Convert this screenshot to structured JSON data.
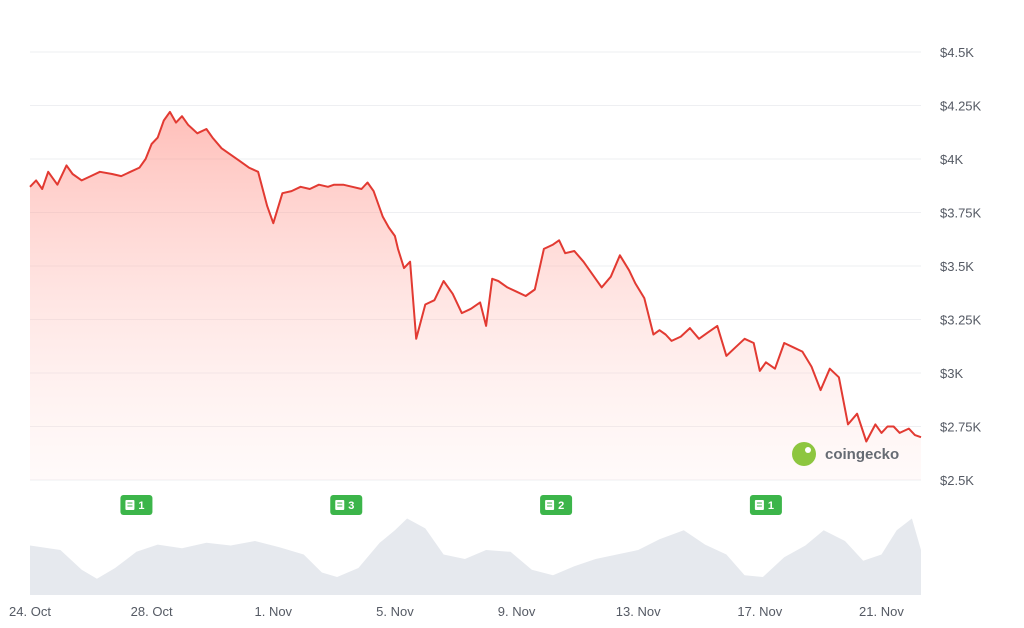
{
  "chart_data": {
    "type": "area",
    "y_tick_labels": [
      "$4.5K",
      "$4.25K",
      "$4K",
      "$3.75K",
      "$3.5K",
      "$3.25K",
      "$3K",
      "$2.75K",
      "$2.5K"
    ],
    "y_ticks": [
      4500,
      4250,
      4000,
      3750,
      3500,
      3250,
      3000,
      2750,
      2500
    ],
    "ylim": [
      2500,
      4500
    ],
    "x_tick_labels": [
      "24. Oct",
      "28. Oct",
      "1. Nov",
      "5. Nov",
      "9. Nov",
      "13. Nov",
      "17. Nov",
      "21. Nov"
    ],
    "x_ticks": [
      0,
      4,
      8,
      12,
      16,
      20,
      24,
      28
    ],
    "x_unit": "days since 24. Oct",
    "xlim": [
      0,
      29.3
    ],
    "grid": true,
    "legend": "none",
    "line_color": "#e23a32",
    "fill_color": "#ff8a80",
    "price_series": {
      "x": [
        0,
        0.2,
        0.4,
        0.6,
        0.9,
        1.2,
        1.4,
        1.7,
        2.0,
        2.3,
        2.7,
        3.0,
        3.3,
        3.6,
        3.8,
        4.0,
        4.2,
        4.4,
        4.6,
        4.8,
        5.0,
        5.2,
        5.5,
        5.8,
        6.0,
        6.3,
        6.6,
        6.9,
        7.2,
        7.5,
        7.8,
        8.0,
        8.3,
        8.6,
        8.9,
        9.2,
        9.5,
        9.8,
        10.0,
        10.3,
        10.6,
        10.9,
        11.1,
        11.3,
        11.6,
        11.8,
        12.0,
        12.1,
        12.3,
        12.5,
        12.7,
        13.0,
        13.3,
        13.6,
        13.9,
        14.2,
        14.5,
        14.8,
        15.0,
        15.2,
        15.4,
        15.7,
        16.0,
        16.3,
        16.6,
        16.9,
        17.2,
        17.4,
        17.6,
        17.9,
        18.2,
        18.5,
        18.8,
        19.1,
        19.4,
        19.7,
        19.9,
        20.2,
        20.5,
        20.7,
        20.9,
        21.1,
        21.4,
        21.7,
        22.0,
        22.3,
        22.6,
        22.9,
        23.2,
        23.5,
        23.8,
        24.0,
        24.2,
        24.5,
        24.8,
        25.1,
        25.4,
        25.7,
        26.0,
        26.3,
        26.6,
        26.9,
        27.2,
        27.5,
        27.8,
        28.0,
        28.2,
        28.4,
        28.6,
        28.9,
        29.1,
        29.3
      ],
      "y": [
        3870,
        3900,
        3860,
        3940,
        3880,
        3970,
        3930,
        3900,
        3920,
        3940,
        3930,
        3920,
        3940,
        3960,
        4000,
        4070,
        4100,
        4180,
        4220,
        4170,
        4200,
        4160,
        4120,
        4140,
        4100,
        4050,
        4020,
        3990,
        3960,
        3940,
        3780,
        3700,
        3840,
        3850,
        3870,
        3860,
        3880,
        3870,
        3880,
        3880,
        3870,
        3860,
        3890,
        3850,
        3730,
        3680,
        3640,
        3580,
        3490,
        3520,
        3160,
        3320,
        3340,
        3430,
        3370,
        3280,
        3300,
        3330,
        3220,
        3440,
        3430,
        3400,
        3380,
        3360,
        3390,
        3580,
        3600,
        3620,
        3560,
        3570,
        3520,
        3460,
        3400,
        3450,
        3550,
        3480,
        3420,
        3350,
        3180,
        3200,
        3180,
        3150,
        3170,
        3210,
        3160,
        3190,
        3220,
        3080,
        3120,
        3160,
        3140,
        3010,
        3050,
        3020,
        3140,
        3120,
        3100,
        3030,
        2920,
        3020,
        2980,
        2760,
        2810,
        2680,
        2760,
        2720,
        2750,
        2750,
        2720,
        2740,
        2710,
        2700
      ]
    },
    "volume_series": {
      "x": [
        0,
        1,
        1.7,
        2.2,
        2.8,
        3.5,
        4.2,
        5.0,
        5.8,
        6.6,
        7.4,
        8.2,
        9.0,
        9.6,
        10.1,
        10.8,
        11.5,
        12.0,
        12.4,
        13.0,
        13.6,
        14.3,
        15.0,
        15.8,
        16.5,
        17.2,
        17.9,
        18.6,
        19.3,
        20.0,
        20.7,
        21.5,
        22.2,
        22.9,
        23.5,
        24.1,
        24.8,
        25.5,
        26.1,
        26.8,
        27.4,
        28.0,
        28.5,
        29.0,
        29.3
      ],
      "y": [
        0.55,
        0.5,
        0.28,
        0.18,
        0.3,
        0.48,
        0.56,
        0.52,
        0.58,
        0.55,
        0.6,
        0.53,
        0.45,
        0.25,
        0.2,
        0.3,
        0.58,
        0.72,
        0.85,
        0.74,
        0.45,
        0.4,
        0.5,
        0.48,
        0.28,
        0.22,
        0.32,
        0.4,
        0.45,
        0.5,
        0.62,
        0.72,
        0.56,
        0.45,
        0.22,
        0.2,
        0.42,
        0.55,
        0.72,
        0.6,
        0.38,
        0.45,
        0.72,
        0.85,
        0.5
      ]
    },
    "news_markers": [
      {
        "x": 3.5,
        "label": "1"
      },
      {
        "x": 10.4,
        "label": "3"
      },
      {
        "x": 17.3,
        "label": "2"
      },
      {
        "x": 24.2,
        "label": "1"
      }
    ],
    "watermark": "coingecko"
  }
}
